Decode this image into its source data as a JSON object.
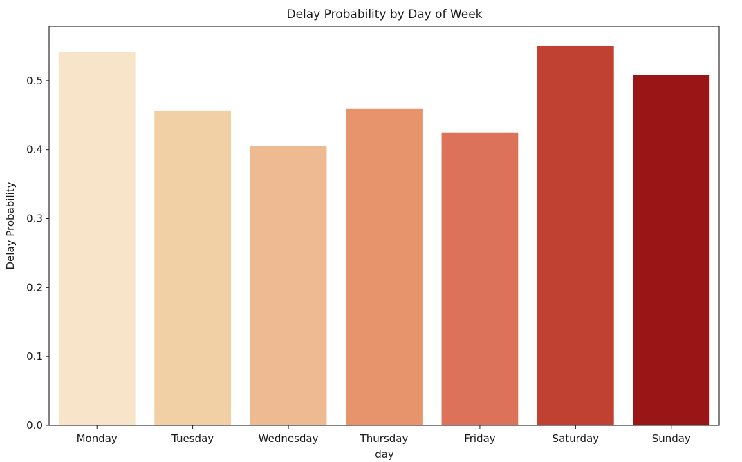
{
  "chart_data": {
    "type": "bar",
    "title": "Delay Probability by Day of Week",
    "xlabel": "day",
    "ylabel": "Delay Probability",
    "categories": [
      "Monday",
      "Tuesday",
      "Wednesday",
      "Thursday",
      "Friday",
      "Saturday",
      "Sunday"
    ],
    "values": [
      0.541,
      0.456,
      0.405,
      0.459,
      0.425,
      0.551,
      0.508
    ],
    "colors": [
      "#f7e4c9",
      "#f2d0a6",
      "#edba92",
      "#e7946c",
      "#dd725b",
      "#c04132",
      "#9a1516"
    ],
    "ylim": [
      0,
      0.579
    ],
    "yticks": [
      0.0,
      0.1,
      0.2,
      0.3,
      0.4,
      0.5
    ],
    "ytick_labels": [
      "0.0",
      "0.1",
      "0.2",
      "0.3",
      "0.4",
      "0.5"
    ],
    "grid": false,
    "legend": "none"
  }
}
